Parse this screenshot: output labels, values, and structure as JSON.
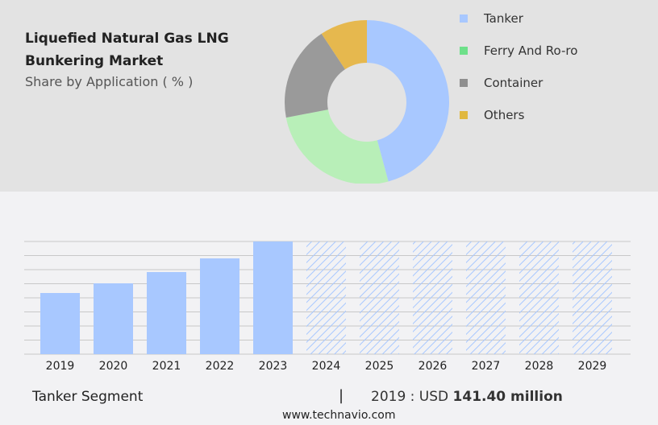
{
  "title": "Liquefied Natural Gas LNG Bunkering Market",
  "subtitle": "Share by Application ( % )",
  "chart_data": [
    {
      "type": "pie",
      "donut": true,
      "categories": [
        "Tanker",
        "Ferry And Ro-ro",
        "Container",
        "Others"
      ],
      "values": [
        45.8,
        26.2,
        18.7,
        9.3
      ],
      "colors": [
        "#a8c8ff",
        "#b8efb8",
        "#9a9a9a",
        "#e6b84e"
      ],
      "legend_colors": [
        "#a8c8ff",
        "#6ee08a",
        "#8f8f8f",
        "#e0b840"
      ],
      "legend": "right"
    },
    {
      "type": "bar",
      "categories": [
        "2019",
        "2020",
        "2021",
        "2022",
        "2023",
        "2024",
        "2025",
        "2026",
        "2027",
        "2028",
        "2029"
      ],
      "values": [
        141.4,
        163.7,
        189.8,
        221.4,
        260.5,
        null,
        null,
        null,
        null,
        null,
        null
      ],
      "forecast_hatched": [
        "2024",
        "2025",
        "2026",
        "2027",
        "2028",
        "2029"
      ],
      "color": "#a8c8ff",
      "grid": true,
      "ylim": [
        0,
        260.5
      ]
    }
  ],
  "footer": {
    "segment": "Tanker Segment",
    "separator": "|",
    "value_prefix": "2019 : USD ",
    "value": "141.40 million",
    "site": "www.technavio.com"
  }
}
